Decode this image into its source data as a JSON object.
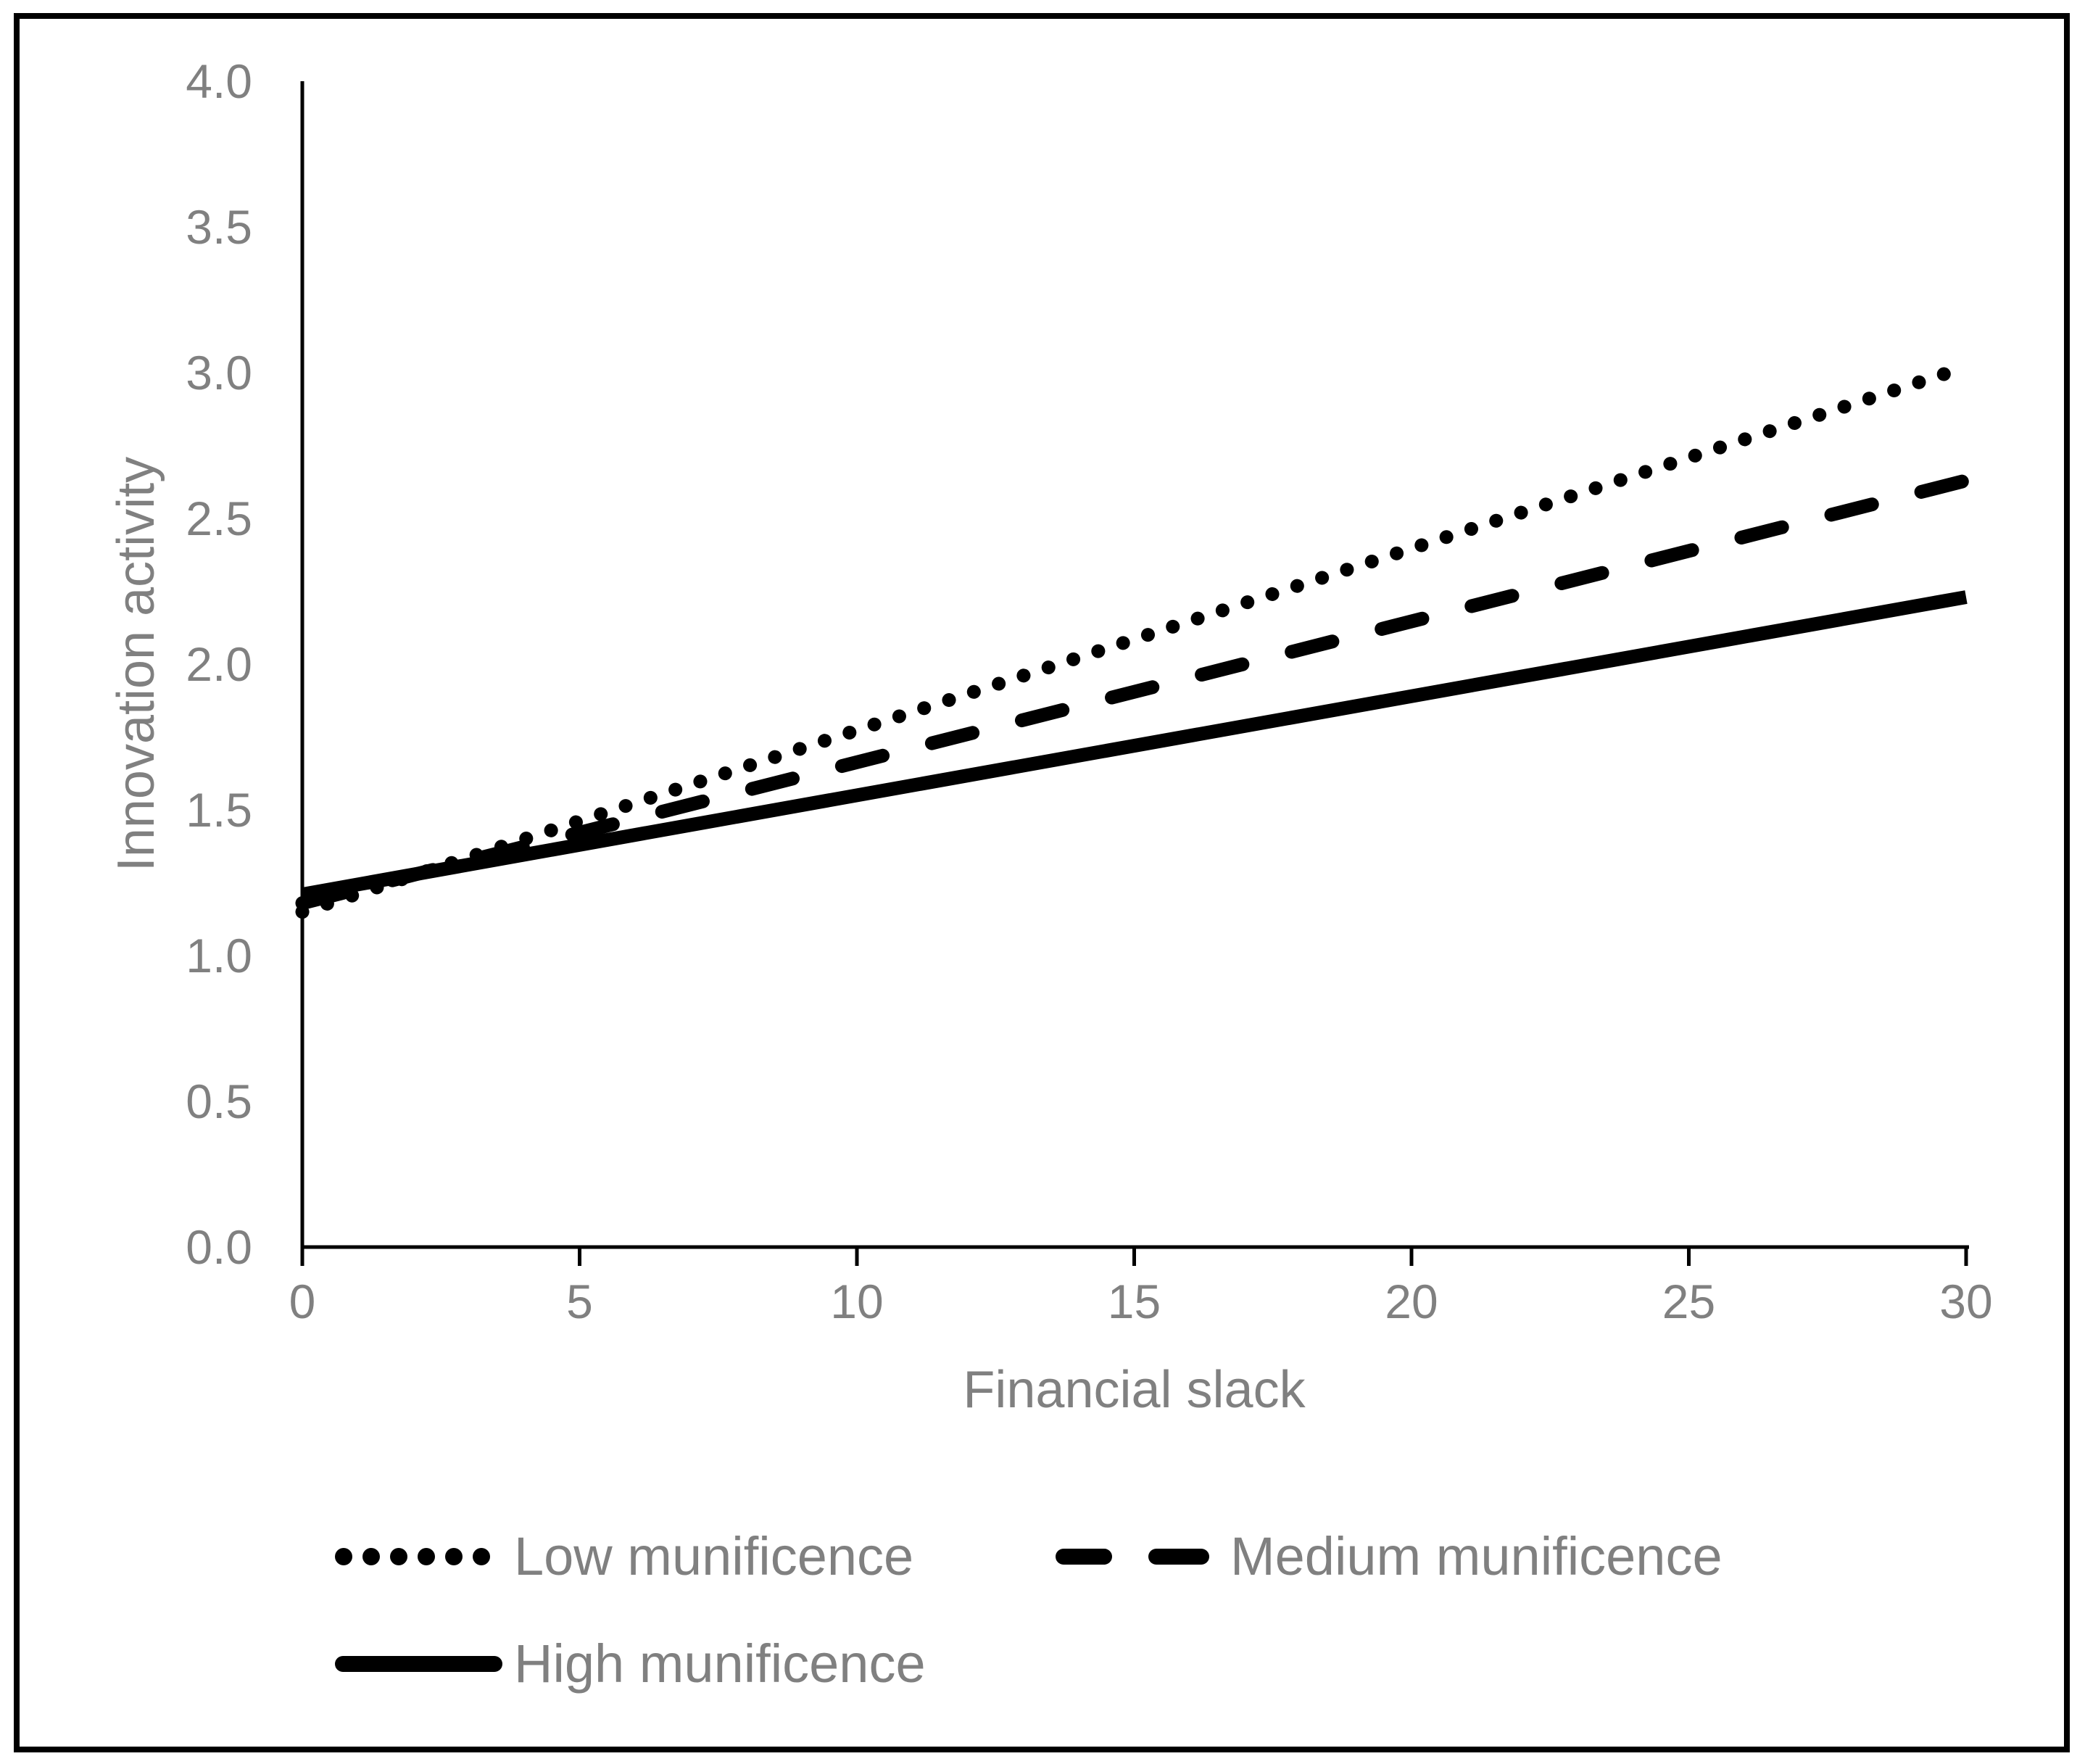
{
  "figure": {
    "background": "#ffffff",
    "border_color": "#000000"
  },
  "chart_data": {
    "type": "line",
    "title": "",
    "xlabel": "Financial slack",
    "ylabel": "Innovation activity",
    "xlim": [
      0,
      30
    ],
    "ylim": [
      0.0,
      4.0
    ],
    "x_tick_values": [
      0,
      5,
      10,
      15,
      20,
      25,
      30
    ],
    "x_tick_labels": [
      "0",
      "5",
      "10",
      "15",
      "20",
      "25",
      "30"
    ],
    "y_tick_values": [
      0.0,
      0.5,
      1.0,
      1.5,
      2.0,
      2.5,
      3.0,
      3.5,
      4.0
    ],
    "y_tick_labels": [
      "0.0",
      "0.5",
      "1.0",
      "1.5",
      "2.0",
      "2.5",
      "3.0",
      "3.5",
      "4.0"
    ],
    "grid": false,
    "legend_position": "bottom",
    "axis_color": "#000000",
    "text_color": "#808080",
    "x": [
      0,
      30
    ],
    "series": [
      {
        "name": "Low munificence",
        "style": "dotted",
        "color": "#000000",
        "values": [
          1.15,
          3.02
        ]
      },
      {
        "name": "Medium munificence",
        "style": "dashed",
        "color": "#000000",
        "values": [
          1.18,
          2.63
        ]
      },
      {
        "name": "High munificence",
        "style": "solid",
        "color": "#000000",
        "values": [
          1.21,
          2.23
        ]
      }
    ]
  }
}
